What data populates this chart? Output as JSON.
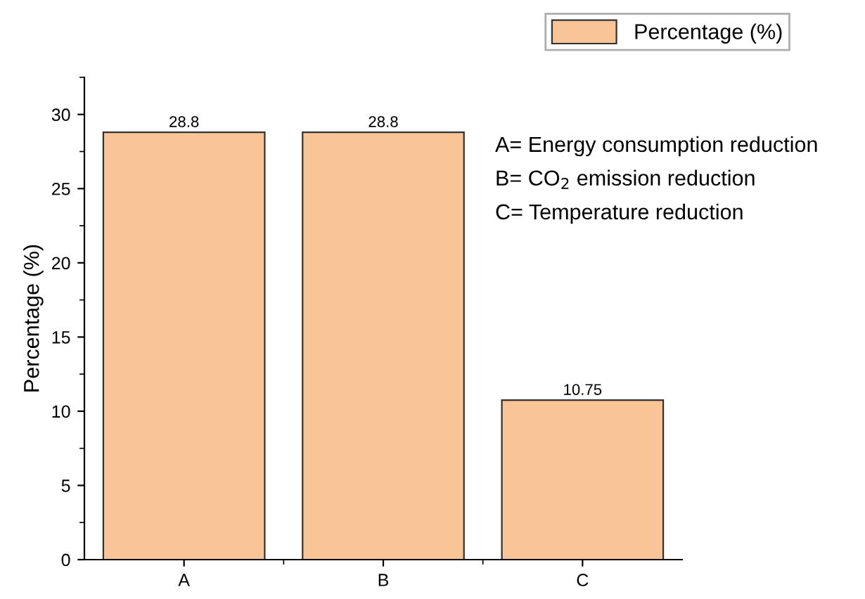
{
  "chart_data": {
    "type": "bar",
    "categories": [
      "A",
      "B",
      "C"
    ],
    "series": [
      {
        "name": "Percentage (%)",
        "color": "#f9c596",
        "values": [
          28.8,
          28.8,
          10.75
        ]
      }
    ],
    "ylabel": "Percentage (%)",
    "ylim": [
      0,
      32.5
    ],
    "yticks": [
      0,
      5,
      10,
      15,
      20,
      25,
      30
    ],
    "data_labels": true,
    "grid": false,
    "legend": "top right",
    "annotations": [
      "A= Energy consumption reduction",
      "B= CO$_{2}$ emission reduction",
      "C= Temperature reduction"
    ]
  }
}
